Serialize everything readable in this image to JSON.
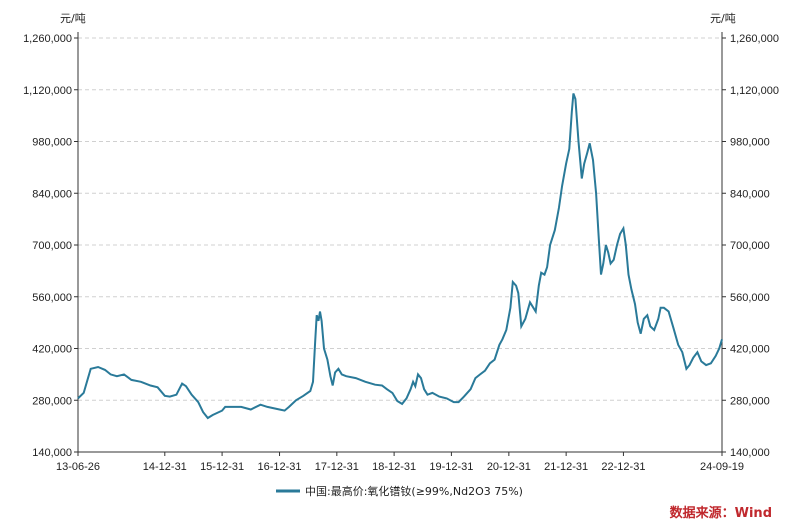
{
  "colors": {
    "line": "#2a7a99",
    "axis": "#333333",
    "grid": "#d0d0d0",
    "source": "#c0282d"
  },
  "source_text": "数据来源：Wind",
  "chart_data": {
    "type": "line",
    "title": "",
    "ylabel_left": "元/吨",
    "ylabel_right": "元/吨",
    "ylim": [
      140000,
      1260000
    ],
    "yticks": [
      140000,
      280000,
      420000,
      560000,
      700000,
      840000,
      980000,
      1120000,
      1260000
    ],
    "ytick_labels": [
      "140,000",
      "280,000",
      "420,000",
      "560,000",
      "700,000",
      "840,000",
      "980,000",
      "1,120,000",
      "1,260,000"
    ],
    "xlim": [
      "2013-06-26",
      "2024-09-19"
    ],
    "xticks": [
      "2013-06-26",
      "2014-12-31",
      "2015-12-31",
      "2016-12-31",
      "2017-12-31",
      "2018-12-31",
      "2019-12-31",
      "2020-12-31",
      "2021-12-31",
      "2022-12-31",
      "2024-09-19"
    ],
    "xtick_labels": [
      "13-06-26",
      "14-12-31",
      "15-12-31",
      "16-12-31",
      "17-12-31",
      "18-12-31",
      "19-12-31",
      "20-12-31",
      "21-12-31",
      "22-12-31",
      "24-09-19"
    ],
    "grid": "horizontal-dashed",
    "legend": "bottom-center",
    "series": [
      {
        "name": "中国:最高价:氧化镨钕(≥99%,Nd2O3 75%)",
        "points": [
          [
            "2013-06-26",
            285000
          ],
          [
            "2013-08-01",
            300000
          ],
          [
            "2013-09-15",
            365000
          ],
          [
            "2013-11-01",
            370000
          ],
          [
            "2013-12-15",
            362000
          ],
          [
            "2014-01-20",
            350000
          ],
          [
            "2014-03-01",
            345000
          ],
          [
            "2014-04-15",
            350000
          ],
          [
            "2014-06-01",
            335000
          ],
          [
            "2014-08-01",
            330000
          ],
          [
            "2014-10-01",
            320000
          ],
          [
            "2014-11-15",
            315000
          ],
          [
            "2014-12-31",
            292000
          ],
          [
            "2015-02-01",
            290000
          ],
          [
            "2015-03-15",
            295000
          ],
          [
            "2015-04-20",
            325000
          ],
          [
            "2015-05-15",
            318000
          ],
          [
            "2015-06-20",
            295000
          ],
          [
            "2015-08-01",
            275000
          ],
          [
            "2015-09-01",
            248000
          ],
          [
            "2015-10-01",
            232000
          ],
          [
            "2015-11-01",
            240000
          ],
          [
            "2015-12-31",
            252000
          ],
          [
            "2016-01-20",
            262000
          ],
          [
            "2016-03-01",
            262000
          ],
          [
            "2016-05-01",
            262000
          ],
          [
            "2016-07-01",
            255000
          ],
          [
            "2016-09-01",
            268000
          ],
          [
            "2016-10-15",
            262000
          ],
          [
            "2016-12-31",
            255000
          ],
          [
            "2017-02-01",
            252000
          ],
          [
            "2017-03-01",
            262000
          ],
          [
            "2017-04-15",
            280000
          ],
          [
            "2017-06-01",
            292000
          ],
          [
            "2017-07-15",
            305000
          ],
          [
            "2017-08-01",
            330000
          ],
          [
            "2017-08-15",
            440000
          ],
          [
            "2017-08-25",
            510000
          ],
          [
            "2017-09-05",
            495000
          ],
          [
            "2017-09-15",
            520000
          ],
          [
            "2017-09-25",
            495000
          ],
          [
            "2017-10-10",
            420000
          ],
          [
            "2017-11-01",
            390000
          ],
          [
            "2017-11-20",
            345000
          ],
          [
            "2017-12-05",
            320000
          ],
          [
            "2017-12-20",
            355000
          ],
          [
            "2018-01-10",
            365000
          ],
          [
            "2018-02-01",
            350000
          ],
          [
            "2018-03-01",
            345000
          ],
          [
            "2018-05-01",
            340000
          ],
          [
            "2018-07-01",
            330000
          ],
          [
            "2018-09-01",
            322000
          ],
          [
            "2018-10-15",
            320000
          ],
          [
            "2018-11-15",
            310000
          ],
          [
            "2018-12-20",
            300000
          ],
          [
            "2019-01-20",
            278000
          ],
          [
            "2019-02-20",
            270000
          ],
          [
            "2019-03-20",
            285000
          ],
          [
            "2019-04-15",
            310000
          ],
          [
            "2019-05-01",
            330000
          ],
          [
            "2019-05-15",
            318000
          ],
          [
            "2019-06-01",
            350000
          ],
          [
            "2019-06-20",
            340000
          ],
          [
            "2019-07-10",
            310000
          ],
          [
            "2019-08-01",
            295000
          ],
          [
            "2019-09-01",
            300000
          ],
          [
            "2019-10-15",
            290000
          ],
          [
            "2019-12-01",
            285000
          ],
          [
            "2020-01-15",
            275000
          ],
          [
            "2020-02-15",
            275000
          ],
          [
            "2020-03-20",
            290000
          ],
          [
            "2020-05-01",
            310000
          ],
          [
            "2020-06-01",
            340000
          ],
          [
            "2020-07-01",
            350000
          ],
          [
            "2020-08-01",
            360000
          ],
          [
            "2020-09-01",
            380000
          ],
          [
            "2020-10-01",
            390000
          ],
          [
            "2020-11-01",
            430000
          ],
          [
            "2020-11-20",
            445000
          ],
          [
            "2020-12-15",
            470000
          ],
          [
            "2021-01-10",
            530000
          ],
          [
            "2021-01-25",
            600000
          ],
          [
            "2021-02-15",
            590000
          ],
          [
            "2021-03-01",
            570000
          ],
          [
            "2021-03-20",
            480000
          ],
          [
            "2021-04-15",
            500000
          ],
          [
            "2021-05-15",
            545000
          ],
          [
            "2021-06-20",
            520000
          ],
          [
            "2021-07-10",
            590000
          ],
          [
            "2021-07-25",
            625000
          ],
          [
            "2021-08-15",
            620000
          ],
          [
            "2021-09-01",
            640000
          ],
          [
            "2021-09-20",
            700000
          ],
          [
            "2021-10-20",
            740000
          ],
          [
            "2021-11-15",
            800000
          ],
          [
            "2021-12-05",
            860000
          ],
          [
            "2021-12-31",
            920000
          ],
          [
            "2022-01-20",
            960000
          ],
          [
            "2022-02-05",
            1060000
          ],
          [
            "2022-02-15",
            1110000
          ],
          [
            "2022-02-28",
            1095000
          ],
          [
            "2022-03-20",
            980000
          ],
          [
            "2022-04-10",
            880000
          ],
          [
            "2022-04-25",
            920000
          ],
          [
            "2022-05-15",
            950000
          ],
          [
            "2022-05-30",
            975000
          ],
          [
            "2022-06-20",
            930000
          ],
          [
            "2022-07-10",
            840000
          ],
          [
            "2022-07-25",
            730000
          ],
          [
            "2022-08-10",
            620000
          ],
          [
            "2022-08-25",
            650000
          ],
          [
            "2022-09-10",
            700000
          ],
          [
            "2022-09-25",
            680000
          ],
          [
            "2022-10-10",
            650000
          ],
          [
            "2022-10-30",
            660000
          ],
          [
            "2022-11-20",
            700000
          ],
          [
            "2022-12-10",
            730000
          ],
          [
            "2022-12-31",
            745000
          ],
          [
            "2023-01-15",
            700000
          ],
          [
            "2023-02-01",
            620000
          ],
          [
            "2023-02-20",
            580000
          ],
          [
            "2023-03-15",
            540000
          ],
          [
            "2023-04-01",
            490000
          ],
          [
            "2023-04-20",
            460000
          ],
          [
            "2023-05-10",
            500000
          ],
          [
            "2023-06-01",
            510000
          ],
          [
            "2023-06-20",
            480000
          ],
          [
            "2023-07-15",
            470000
          ],
          [
            "2023-08-10",
            500000
          ],
          [
            "2023-08-25",
            530000
          ],
          [
            "2023-09-15",
            530000
          ],
          [
            "2023-10-15",
            520000
          ],
          [
            "2023-11-15",
            475000
          ],
          [
            "2023-12-15",
            430000
          ],
          [
            "2024-01-10",
            410000
          ],
          [
            "2024-02-05",
            365000
          ],
          [
            "2024-02-25",
            375000
          ],
          [
            "2024-03-20",
            395000
          ],
          [
            "2024-04-15",
            410000
          ],
          [
            "2024-05-10",
            385000
          ],
          [
            "2024-06-10",
            375000
          ],
          [
            "2024-07-10",
            380000
          ],
          [
            "2024-08-10",
            400000
          ],
          [
            "2024-09-01",
            420000
          ],
          [
            "2024-09-19",
            445000
          ]
        ]
      }
    ]
  }
}
